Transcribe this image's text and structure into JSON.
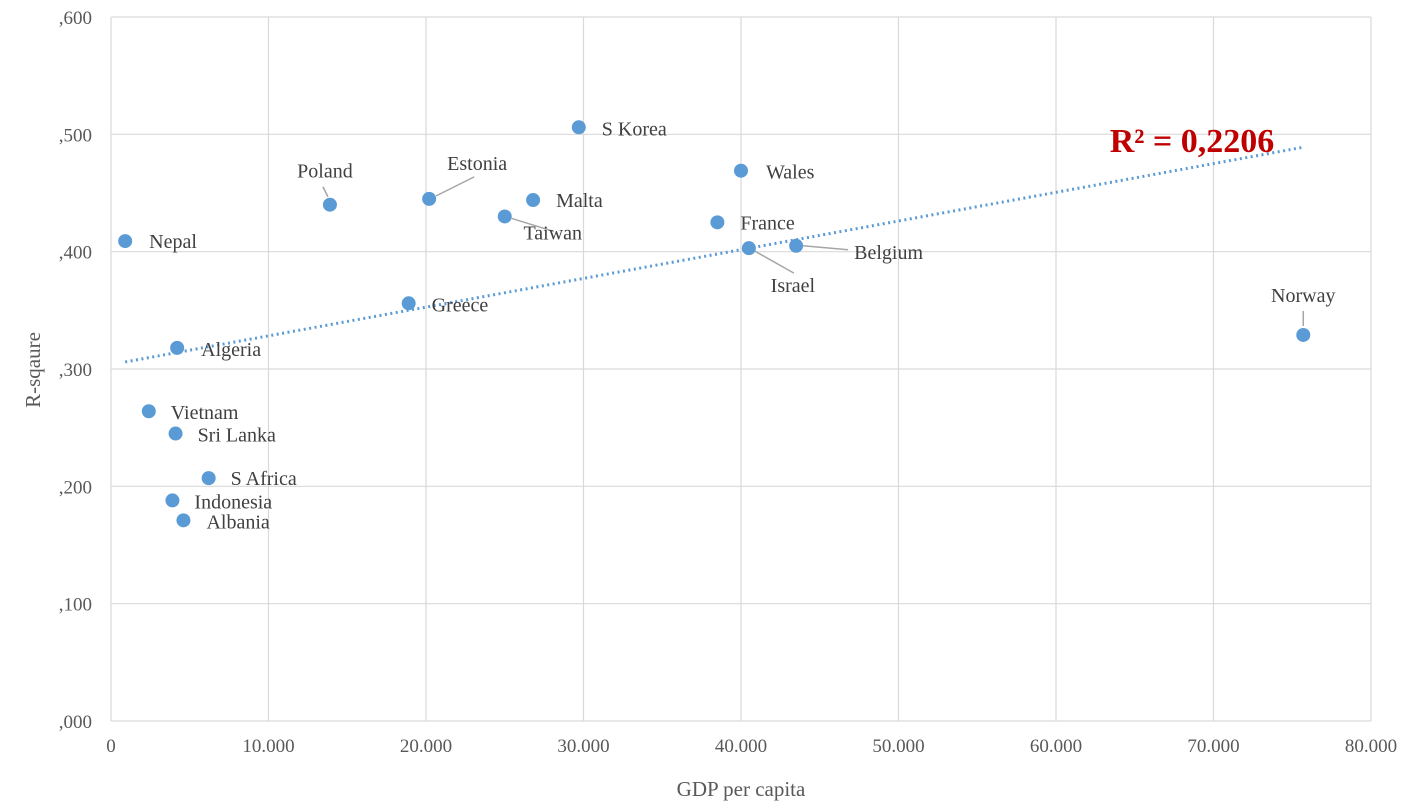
{
  "chart_data": {
    "type": "scatter",
    "xlabel": "GDP per capita",
    "ylabel": "R-sqaure",
    "xlim": [
      0,
      80000
    ],
    "ylim": [
      0,
      0.6
    ],
    "x_ticks": [
      "0",
      "10.000",
      "20.000",
      "30.000",
      "40.000",
      "50.000",
      "60.000",
      "70.000",
      "80.000"
    ],
    "y_ticks": [
      ",000",
      ",100",
      ",200",
      ",300",
      ",400",
      ",500",
      ",600"
    ],
    "grid": true,
    "points": [
      {
        "label": "Nepal",
        "x": 900,
        "y": 0.409
      },
      {
        "label": "Vietnam",
        "x": 2400,
        "y": 0.264
      },
      {
        "label": "Indonesia",
        "x": 3900,
        "y": 0.188
      },
      {
        "label": "Sri Lanka",
        "x": 4100,
        "y": 0.245
      },
      {
        "label": "Algeria",
        "x": 4200,
        "y": 0.318
      },
      {
        "label": "Albania",
        "x": 4600,
        "y": 0.171
      },
      {
        "label": "S Africa",
        "x": 6200,
        "y": 0.207
      },
      {
        "label": "Poland",
        "x": 13900,
        "y": 0.44
      },
      {
        "label": "Greece",
        "x": 18900,
        "y": 0.356
      },
      {
        "label": "Estonia",
        "x": 20200,
        "y": 0.445
      },
      {
        "label": "Taiwan",
        "x": 25000,
        "y": 0.43
      },
      {
        "label": "Malta",
        "x": 26800,
        "y": 0.444
      },
      {
        "label": "S Korea",
        "x": 29700,
        "y": 0.506
      },
      {
        "label": "France",
        "x": 38500,
        "y": 0.425
      },
      {
        "label": "Wales",
        "x": 40000,
        "y": 0.469
      },
      {
        "label": "Israel",
        "x": 40500,
        "y": 0.403
      },
      {
        "label": "Belgium",
        "x": 43500,
        "y": 0.405
      },
      {
        "label": "Norway",
        "x": 75700,
        "y": 0.329
      }
    ],
    "trendline": {
      "type": "linear",
      "x": [
        900,
        75700
      ],
      "y": [
        0.306,
        0.489
      ]
    },
    "annotation": "R² = 0,2206",
    "colors": {
      "marker": "#5b9bd5",
      "trendline": "#5b9bd5",
      "annotation": "#c00000",
      "grid": "#d9d9d9",
      "leader": "#a6a6a6"
    }
  }
}
